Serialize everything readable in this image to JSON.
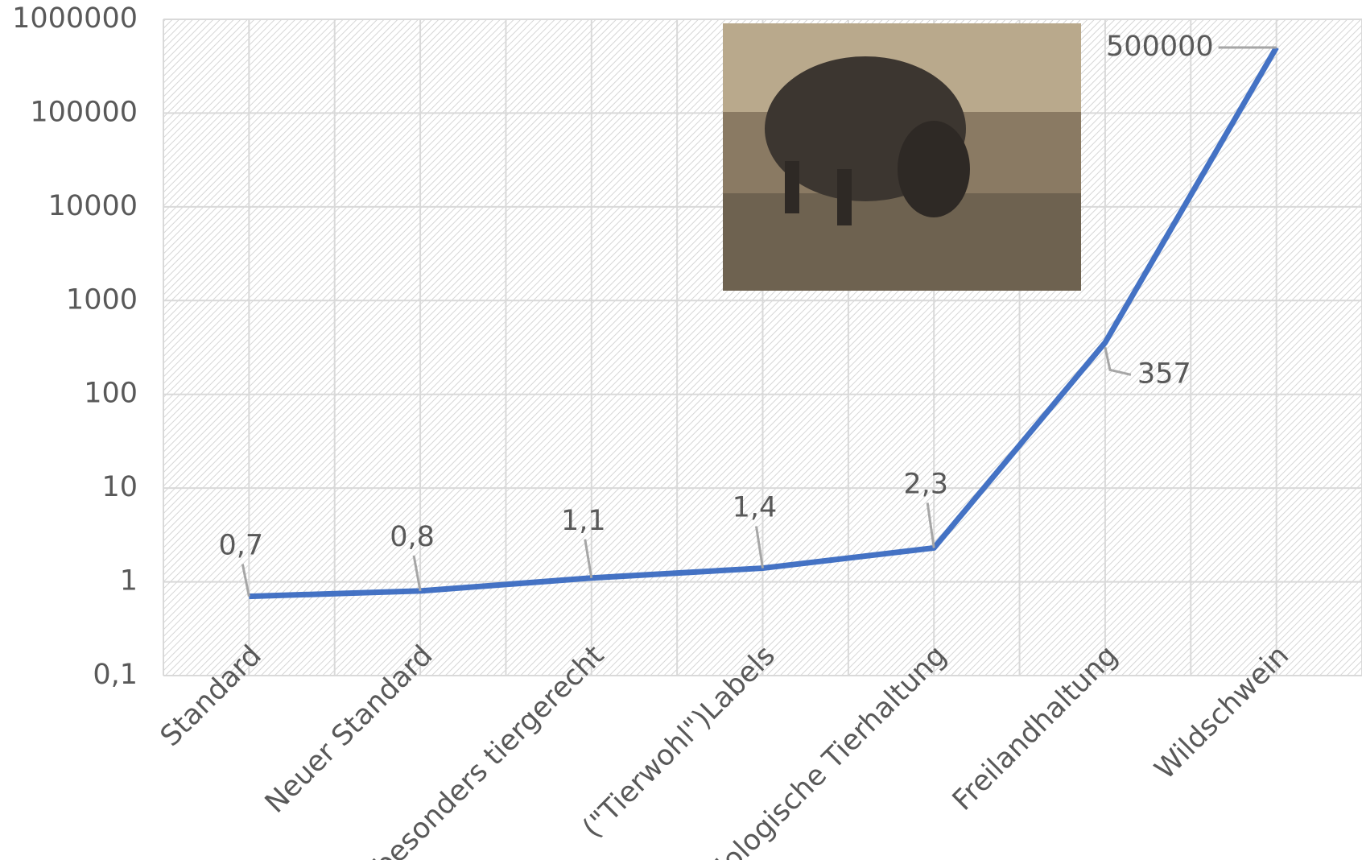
{
  "chart_data": {
    "type": "line",
    "categories": [
      "Standard",
      "Neuer Standard",
      "besonders tiergerecht",
      "(\"Tierwohl\")Labels",
      "Biologische Tierhaltung",
      "Freilandhaltung",
      "Wildschwein"
    ],
    "series": [
      {
        "color": "#4472c4",
        "values": [
          0.7,
          0.8,
          1.1,
          1.4,
          2.3,
          357,
          500000
        ],
        "value_labels": [
          "0,7",
          "0,8",
          "1,1",
          "1,4",
          "2,3",
          "357",
          "500000"
        ]
      }
    ],
    "log_scale": true,
    "ylim": [
      0.1,
      1000000
    ],
    "yticks": [
      {
        "value": 0.1,
        "label": "0,1"
      },
      1,
      10,
      100,
      1000,
      10000,
      100000,
      1000000
    ],
    "grid": true
  }
}
